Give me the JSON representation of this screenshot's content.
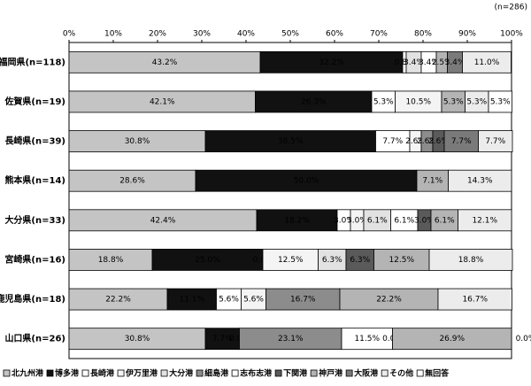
{
  "chart_data": {
    "type": "stacked-bar-horizontal",
    "note": "(n=286)",
    "categories": [
      "福岡県(n=118)",
      "佐賀県(n=19)",
      "長崎県(n=39)",
      "熊本県(n=14)",
      "大分県(n=33)",
      "宮崎県(n=16)",
      "鹿児島県(n=18)",
      "山口県(n=26)"
    ],
    "xlim": [
      0,
      100
    ],
    "xticks": [
      {
        "value": 0,
        "label": "0%"
      },
      {
        "value": 10,
        "label": "10%"
      },
      {
        "value": 20,
        "label": "20%"
      },
      {
        "value": 30,
        "label": "30%"
      },
      {
        "value": 40,
        "label": "40%"
      },
      {
        "value": 50,
        "label": "50%"
      },
      {
        "value": 60,
        "label": "60%"
      },
      {
        "value": 70,
        "label": "70%"
      },
      {
        "value": 80,
        "label": "80%"
      },
      {
        "value": 90,
        "label": "90%"
      },
      {
        "value": 100,
        "label": "100%"
      }
    ],
    "series": [
      {
        "name": "北九州港",
        "color": "#c4c4c4",
        "values": [
          43.2,
          42.1,
          30.8,
          28.6,
          42.4,
          18.8,
          22.2,
          30.8
        ],
        "value_labels": [
          "43.2%",
          "42.1%",
          "30.8%",
          "28.6%",
          "42.4%",
          "18.8%",
          "22.2%",
          "30.8%"
        ]
      },
      {
        "name": "博多港",
        "color": "#111111",
        "values": [
          32.2,
          26.3,
          38.5,
          50.0,
          18.2,
          25.0,
          11.1,
          7.7
        ],
        "value_labels": [
          "32.2%",
          "26.3%",
          "38.5%",
          "50.0%",
          "18.2%",
          "25.0%",
          "11.1%",
          "7.7%"
        ]
      },
      {
        "name": "長崎港",
        "color": "#ffffff",
        "values": [
          0.8,
          5.3,
          7.7,
          0,
          3.0,
          0,
          5.6,
          0
        ],
        "value_labels": [
          "0.8%",
          "5.3%",
          "7.7%",
          null,
          "3.0%",
          "0.0%",
          "5.6%",
          "0.0%"
        ]
      },
      {
        "name": "伊万里港",
        "color": "#f4f4f4",
        "values": [
          0,
          10.5,
          2.6,
          0,
          3.0,
          12.5,
          5.6,
          0
        ],
        "value_labels": [
          null,
          "10.5%",
          "2.6%",
          null,
          "3.0%",
          "12.5%",
          "5.6%",
          null
        ]
      },
      {
        "name": "大分港",
        "color": "#e2e2e2",
        "values": [
          3.4,
          0,
          0,
          0,
          6.1,
          6.3,
          0,
          0
        ],
        "value_labels": [
          "3.4%",
          null,
          null,
          null,
          "6.1%",
          "6.3%",
          null,
          null
        ]
      },
      {
        "name": "細島港",
        "color": "#8c8c8c",
        "values": [
          0,
          0,
          2.6,
          0,
          0,
          0,
          16.7,
          23.1
        ],
        "value_labels": [
          null,
          null,
          "2.6%",
          null,
          null,
          null,
          "16.7%",
          "23.1%"
        ]
      },
      {
        "name": "志布志港",
        "color": "#ffffff",
        "values": [
          3.4,
          0,
          0,
          0,
          6.1,
          0,
          0,
          11.5
        ],
        "value_labels": [
          "3.4%",
          null,
          null,
          null,
          "6.1%",
          null,
          null,
          "11.5%"
        ]
      },
      {
        "name": "下関港",
        "color": "#5a5a5a",
        "values": [
          0,
          0,
          2.6,
          0,
          3.0,
          6.3,
          0,
          0
        ],
        "value_labels": [
          null,
          null,
          "2.6%",
          null,
          "3.0%",
          "6.3%",
          null,
          "0.0%"
        ]
      },
      {
        "name": "神戸港",
        "color": "#b4b4b4",
        "values": [
          2.5,
          5.3,
          0,
          7.1,
          6.1,
          12.5,
          22.2,
          26.9
        ],
        "value_labels": [
          "2.5%",
          "5.3%",
          null,
          "7.1%",
          "6.1%",
          "12.5%",
          "22.2%",
          "26.9%"
        ]
      },
      {
        "name": "大阪港",
        "color": "#7a7a7a",
        "values": [
          3.4,
          0,
          7.7,
          0,
          0,
          0,
          0,
          0
        ],
        "value_labels": [
          "3.4%",
          null,
          "7.7%",
          null,
          null,
          null,
          null,
          null
        ]
      },
      {
        "name": "その他",
        "color": "#ececec",
        "values": [
          11.0,
          5.3,
          7.7,
          14.3,
          12.1,
          18.8,
          16.7,
          0
        ],
        "value_labels": [
          "11.0%",
          "5.3%",
          "7.7%",
          "14.3%",
          "12.1%",
          "18.8%",
          "16.7%",
          null
        ]
      },
      {
        "name": "無回答",
        "color": "#ffffff",
        "values": [
          0,
          5.3,
          0,
          0,
          0,
          0,
          0,
          0
        ],
        "value_labels": [
          null,
          "5.3%",
          null,
          null,
          null,
          null,
          null,
          "0.0%"
        ]
      }
    ]
  }
}
